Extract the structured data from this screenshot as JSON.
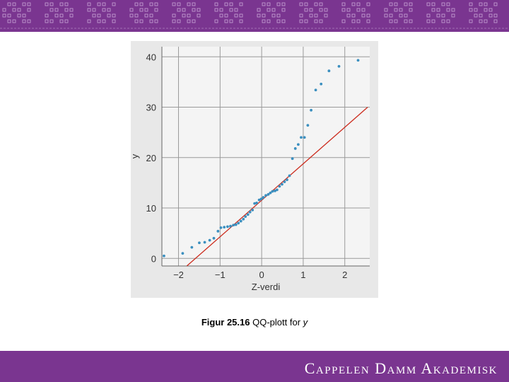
{
  "header": {
    "pattern_color": "#7a3590"
  },
  "footer": {
    "brand": "Cappelen Damm Akademisk"
  },
  "caption": {
    "label": "Figur 25.16",
    "text": "QQ-plott for",
    "var": "y"
  },
  "colors": {
    "points": "#3b8fbf",
    "reference_line": "#cc2b1d",
    "panel": "#e8e8e8",
    "grid": "#9a9a9a"
  },
  "chart_data": {
    "type": "scatter",
    "xlabel": "Z-verdi",
    "ylabel": "y",
    "xlim": [
      -2.4,
      2.6
    ],
    "ylim": [
      -1.5,
      42
    ],
    "xticks": [
      -2,
      -1,
      0,
      1,
      2
    ],
    "xtick_labels": [
      "−2",
      "−1",
      "0",
      "1",
      "2"
    ],
    "yticks": [
      0,
      10,
      20,
      30,
      40
    ],
    "ytick_labels": [
      "0",
      "10",
      "20",
      "30",
      "40"
    ],
    "grid": true,
    "reference_line": {
      "x": [
        -1.8,
        2.55
      ],
      "y": [
        -1.5,
        30
      ]
    },
    "points": [
      [
        -2.35,
        0.5
      ],
      [
        -1.9,
        1.0
      ],
      [
        -1.68,
        2.2
      ],
      [
        -1.5,
        3.1
      ],
      [
        -1.37,
        3.2
      ],
      [
        -1.25,
        3.6
      ],
      [
        -1.15,
        4.0
      ],
      [
        -1.05,
        5.4
      ],
      [
        -0.98,
        6.1
      ],
      [
        -0.9,
        6.2
      ],
      [
        -0.82,
        6.3
      ],
      [
        -0.75,
        6.4
      ],
      [
        -0.68,
        6.6
      ],
      [
        -0.62,
        6.7
      ],
      [
        -0.56,
        7.0
      ],
      [
        -0.5,
        7.4
      ],
      [
        -0.44,
        7.8
      ],
      [
        -0.39,
        8.3
      ],
      [
        -0.33,
        8.7
      ],
      [
        -0.28,
        9.2
      ],
      [
        -0.22,
        9.6
      ],
      [
        -0.17,
        10.9
      ],
      [
        -0.12,
        11.0
      ],
      [
        -0.06,
        11.6
      ],
      [
        -0.01,
        11.8
      ],
      [
        0.04,
        12.1
      ],
      [
        0.1,
        12.5
      ],
      [
        0.16,
        12.7
      ],
      [
        0.21,
        13.0
      ],
      [
        0.26,
        13.3
      ],
      [
        0.32,
        13.4
      ],
      [
        0.37,
        13.6
      ],
      [
        0.43,
        14.3
      ],
      [
        0.49,
        14.7
      ],
      [
        0.55,
        15.2
      ],
      [
        0.61,
        15.6
      ],
      [
        0.67,
        16.4
      ],
      [
        0.74,
        19.8
      ],
      [
        0.81,
        21.8
      ],
      [
        0.88,
        22.6
      ],
      [
        0.95,
        24.0
      ],
      [
        1.03,
        24.0
      ],
      [
        1.11,
        26.4
      ],
      [
        1.19,
        29.4
      ],
      [
        1.3,
        33.4
      ],
      [
        1.43,
        34.6
      ],
      [
        1.62,
        37.2
      ],
      [
        1.86,
        38.1
      ],
      [
        2.32,
        39.3
      ]
    ]
  }
}
